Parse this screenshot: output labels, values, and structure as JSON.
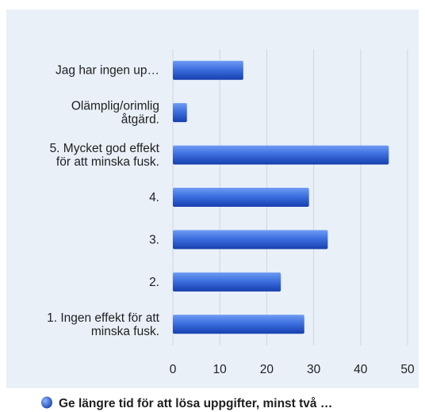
{
  "chart_data": {
    "type": "bar",
    "orientation": "horizontal",
    "title": "",
    "xlabel": "",
    "ylabel": "",
    "categories": [
      "Jag har ingen up…",
      "Olämplig/orimlig åtgärd.",
      "5. Mycket god effekt för att minska fusk.",
      "4.",
      "3.",
      "2.",
      "1. Ingen effekt för att minska fusk."
    ],
    "series": [
      {
        "name": "Ge längre tid för att lösa uppgifter, minst två …",
        "values": [
          15,
          3,
          46,
          29,
          33,
          23,
          28
        ],
        "color": "#2a5bd6"
      }
    ],
    "xlim": [
      0,
      50
    ],
    "xticks": [
      0,
      10,
      20,
      30,
      40,
      50
    ],
    "grid": true,
    "legend_position": "bottom"
  },
  "colors": {
    "panel_background": "#e9f0f8",
    "grid_line": "#cfd6de",
    "bar_dark": "#1a47b8",
    "bar_light": "#5c8ef0"
  }
}
